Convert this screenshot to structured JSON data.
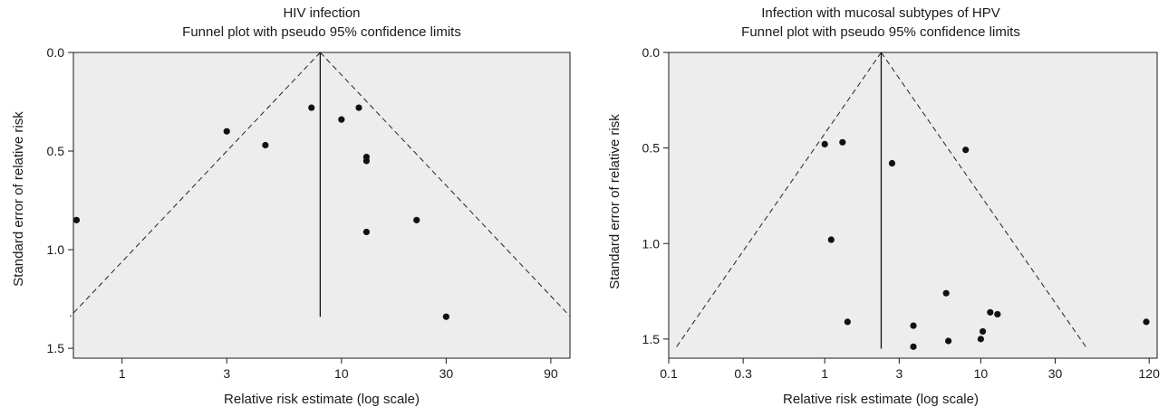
{
  "chart_data": [
    {
      "type": "scatter",
      "title": "HIV infection",
      "subtitle": "Funnel plot with pseudo 95% confidence limits",
      "xlabel": "Relative risk estimate (log scale)",
      "ylabel": "Standard error of relative risk",
      "x_scale": "log",
      "y_reversed": true,
      "xlim": [
        0.6,
        110
      ],
      "ylim": [
        0,
        1.55
      ],
      "x_ticks": [
        1,
        3,
        10,
        30,
        90
      ],
      "x_tick_labels": [
        "1",
        "3",
        "10",
        "30",
        "90"
      ],
      "y_ticks": [
        0.0,
        0.5,
        1.0,
        1.5
      ],
      "y_tick_labels": [
        "0.0",
        "0.5",
        "1.0",
        "1.5"
      ],
      "pooled_estimate": 8.0,
      "limits_se_max": 1.34,
      "points": [
        {
          "x": 0.62,
          "y": 0.85
        },
        {
          "x": 3.0,
          "y": 0.4
        },
        {
          "x": 4.5,
          "y": 0.47
        },
        {
          "x": 7.3,
          "y": 0.28
        },
        {
          "x": 10.0,
          "y": 0.34
        },
        {
          "x": 12.0,
          "y": 0.28
        },
        {
          "x": 13.0,
          "y": 0.53
        },
        {
          "x": 13.0,
          "y": 0.55
        },
        {
          "x": 13.0,
          "y": 0.91
        },
        {
          "x": 22.0,
          "y": 0.85
        },
        {
          "x": 30.0,
          "y": 1.34
        }
      ]
    },
    {
      "type": "scatter",
      "title": "Infection with mucosal subtypes of HPV",
      "subtitle": "Funnel plot with pseudo 95% confidence limits",
      "xlabel": "Relative risk estimate (log scale)",
      "ylabel": "Standard error of relative risk",
      "x_scale": "log",
      "y_reversed": true,
      "xlim": [
        0.1,
        135
      ],
      "ylim": [
        0,
        1.6
      ],
      "x_ticks": [
        0.1,
        0.3,
        1,
        3,
        10,
        30,
        120
      ],
      "x_tick_labels": [
        "0.1",
        "0.3",
        "1",
        "3",
        "10",
        "30",
        "120"
      ],
      "y_ticks": [
        0.0,
        0.5,
        1.0,
        1.5
      ],
      "y_tick_labels": [
        "0.0",
        "0.5",
        "1.0",
        "1.5"
      ],
      "pooled_estimate": 2.3,
      "limits_se_max": 1.55,
      "points": [
        {
          "x": 1.0,
          "y": 0.48
        },
        {
          "x": 1.3,
          "y": 0.47
        },
        {
          "x": 1.1,
          "y": 0.98
        },
        {
          "x": 1.4,
          "y": 1.41
        },
        {
          "x": 2.7,
          "y": 0.58
        },
        {
          "x": 3.7,
          "y": 1.43
        },
        {
          "x": 3.7,
          "y": 1.54
        },
        {
          "x": 6.0,
          "y": 1.26
        },
        {
          "x": 6.2,
          "y": 1.51
        },
        {
          "x": 8.0,
          "y": 0.51
        },
        {
          "x": 10.0,
          "y": 1.5
        },
        {
          "x": 10.3,
          "y": 1.46
        },
        {
          "x": 11.5,
          "y": 1.36
        },
        {
          "x": 12.8,
          "y": 1.37
        },
        {
          "x": 115.0,
          "y": 1.41
        }
      ]
    }
  ]
}
